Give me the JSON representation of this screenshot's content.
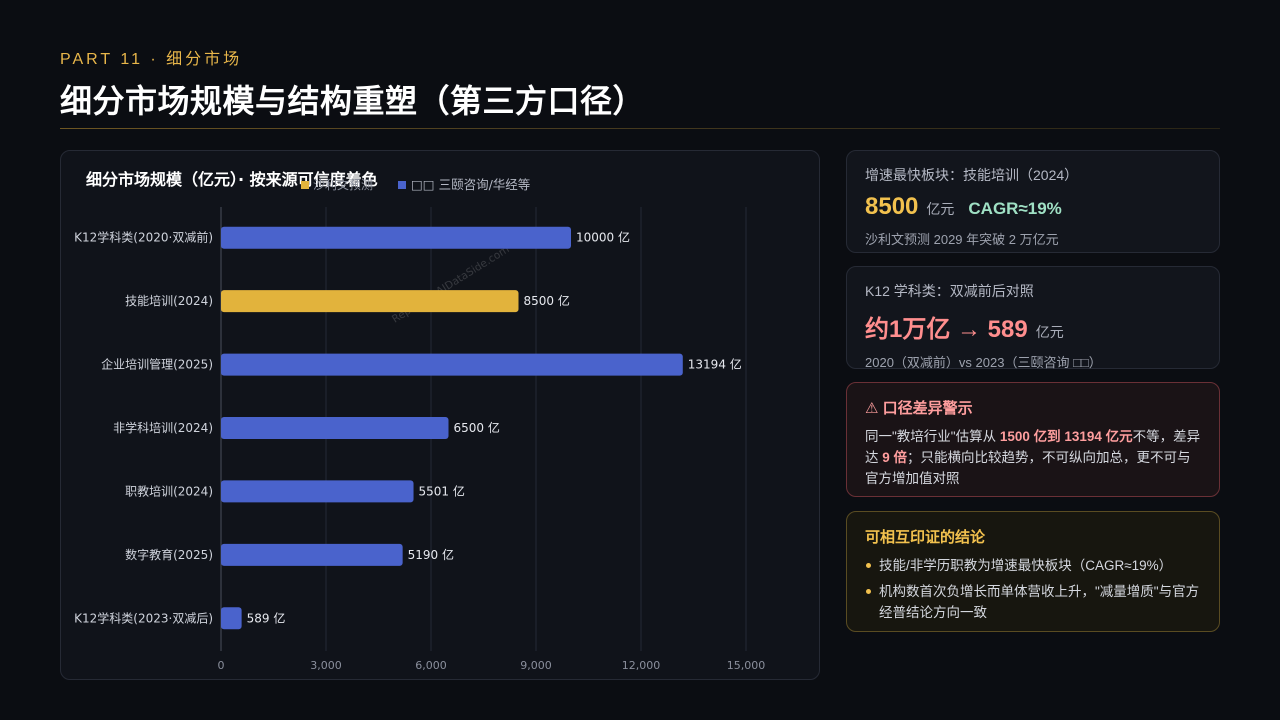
{
  "header": {
    "eyebrow": "PART 11 · 细分市场",
    "title": "细分市场规模与结构重塑（第三方口径）"
  },
  "colors": {
    "accent": "#e8b64a",
    "bar_blue": "#4a63cc",
    "bar_gold": "#e2b33c",
    "warning": "#ff8e8e",
    "positive": "#9fe0c4"
  },
  "chart_data": {
    "type": "bar",
    "orientation": "horizontal",
    "title": "细分市场规模（亿元）· 按来源可信度着色",
    "legend": [
      {
        "label": "沙利文预测",
        "color": "#e2b33c"
      },
      {
        "label": "□□ 三颐咨询/华经等",
        "color": "#4a63cc"
      }
    ],
    "legend_placement": "top",
    "categories": [
      "K12学科类(2020·双减前)",
      "技能培训(2024)",
      "企业培训管理(2025)",
      "非学科培训(2024)",
      "职教培训(2024)",
      "数字教育(2025)",
      "K12学科类(2023·双减后)"
    ],
    "values": [
      10000,
      8500,
      13194,
      6500,
      5501,
      5190,
      589
    ],
    "value_labels": [
      "10000 亿",
      "8500 亿",
      "13194 亿",
      "6500 亿",
      "5501 亿",
      "5190 亿",
      "589 亿"
    ],
    "series_index": [
      1,
      0,
      1,
      1,
      1,
      1,
      1
    ],
    "xlim": [
      0,
      17000
    ],
    "xticks": [
      0,
      3000,
      6000,
      9000,
      12000,
      15000
    ],
    "xtick_labels": [
      "0",
      "3,000",
      "6,000",
      "9,000",
      "12,000",
      "15,000"
    ],
    "grid": "vertical",
    "watermark": "Report @ AIDataSide.com"
  },
  "cards": {
    "fastest": {
      "label": "增速最快板块：技能培训（2024）",
      "value": "8500",
      "unit": "亿元",
      "cagr": "CAGR≈19%",
      "sub": "沙利文预测 2029 年突破 2 万亿元"
    },
    "k12": {
      "label": "K12 学科类：双减前后对照",
      "value": "约1万亿 → 589",
      "unit": "亿元",
      "sub": "2020（双减前）vs 2023（三颐咨询 □□）"
    },
    "warning": {
      "title": "⚠ 口径差异警示",
      "text_1": "同一\"教培行业\"估算从 ",
      "bold_1": "1500 亿到 13194 亿元",
      "text_2": "不等，差异达 ",
      "bold_2": "9 倍",
      "text_3": "；只能横向比较趋势，不可纵向加总，更不可与官方增加值对照"
    },
    "conclusion": {
      "title": "可相互印证的结论",
      "items": [
        "技能/非学历职教为增速最快板块（CAGR≈19%）",
        "机构数首次负增长而单体营收上升，\"减量增质\"与官方经普结论方向一致"
      ]
    }
  }
}
